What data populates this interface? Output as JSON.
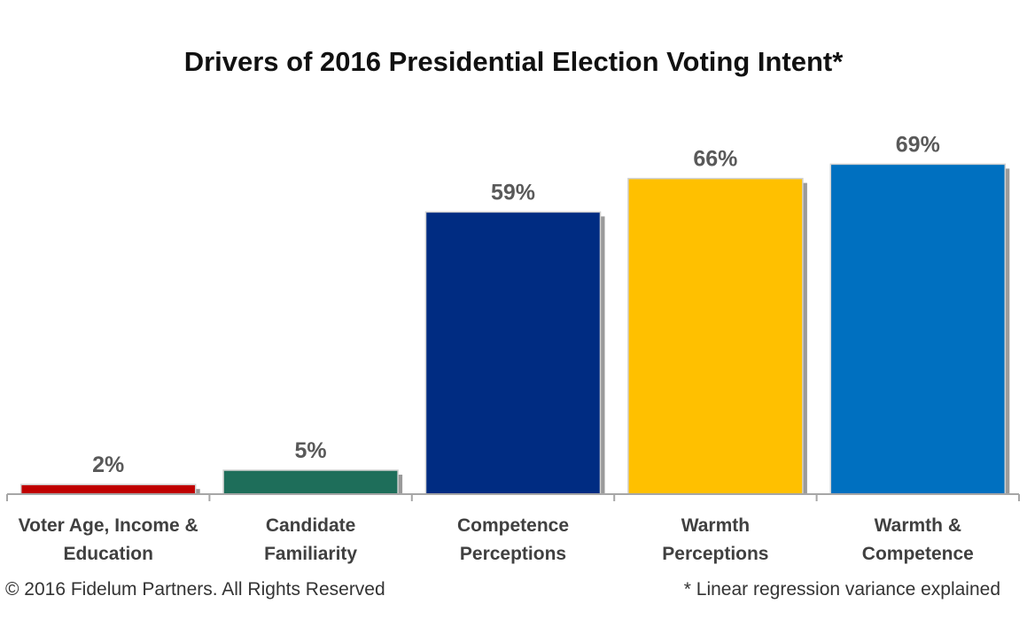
{
  "chart_data": {
    "type": "bar",
    "title": "Drivers of 2016 Presidential Election Voting Intent*",
    "categories": [
      [
        "Voter Age, Income &",
        "Education"
      ],
      [
        "Candidate",
        "Familiarity"
      ],
      [
        "Competence",
        "Perceptions"
      ],
      [
        "Warmth",
        "Perceptions"
      ],
      [
        "Warmth &",
        "Competence"
      ]
    ],
    "values": [
      2,
      5,
      59,
      66,
      69
    ],
    "value_labels": [
      "2%",
      "5%",
      "59%",
      "66%",
      "69%"
    ],
    "colors": [
      "#c00000",
      "#1e6e5a",
      "#002c82",
      "#ffc000",
      "#0070c0"
    ],
    "ylim": [
      0,
      100
    ],
    "grid": false,
    "legend": "none"
  },
  "footer": {
    "copyright": "© 2016 Fidelum Partners. All Rights Reserved",
    "note": "* Linear regression variance explained"
  }
}
